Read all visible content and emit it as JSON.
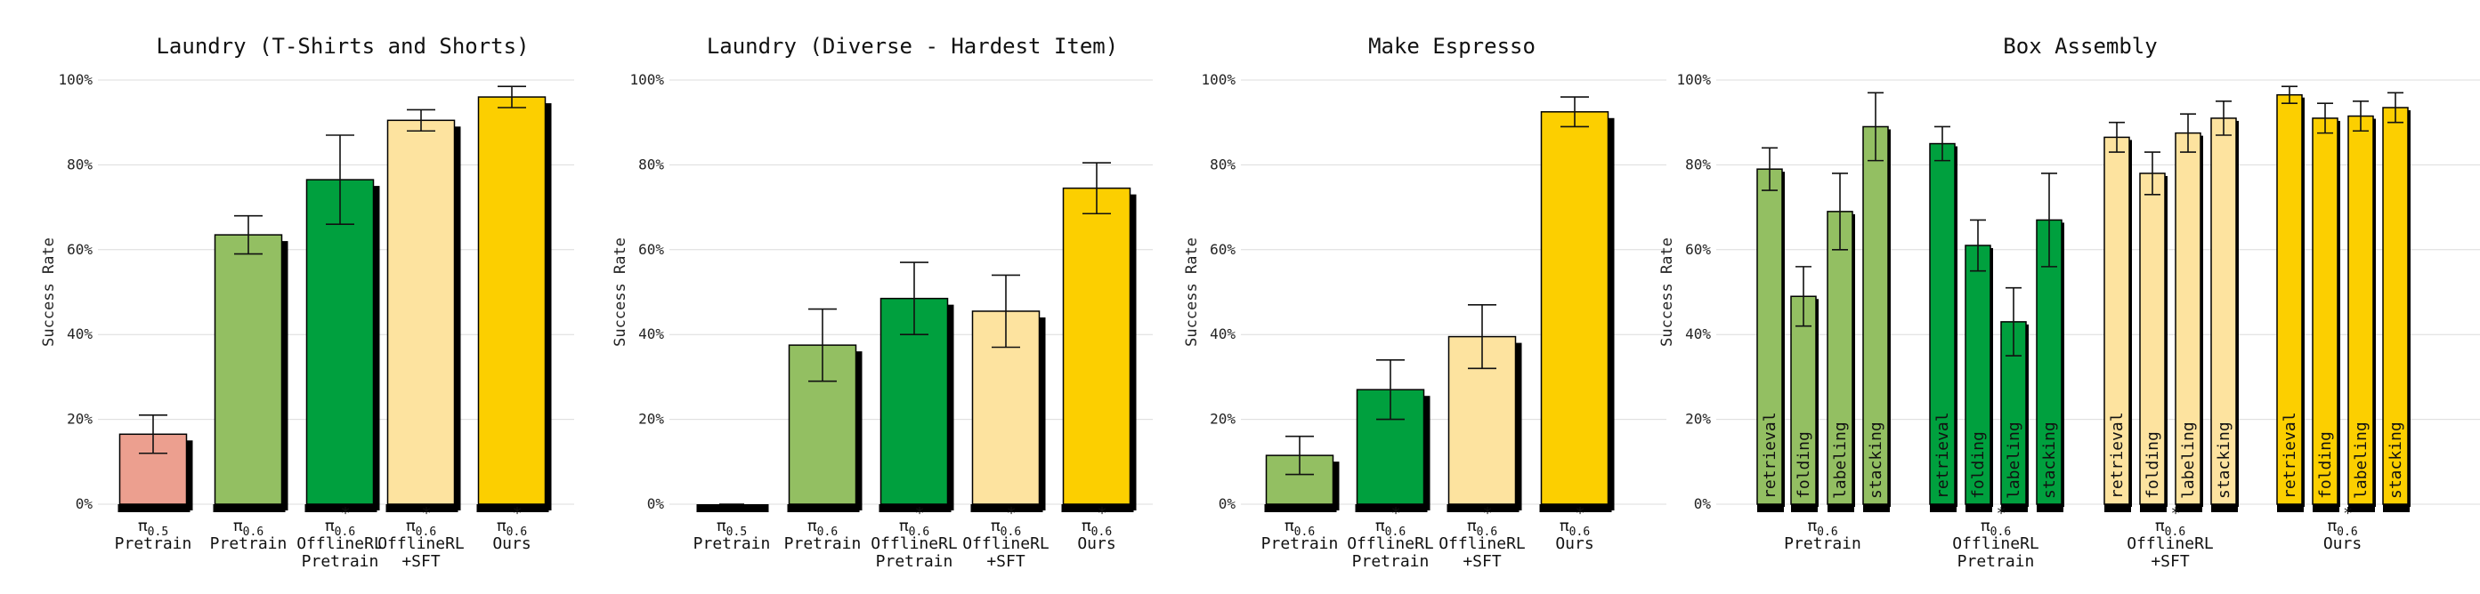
{
  "colors": {
    "pi05_pretrain": "#ec9f8f",
    "pi06_pretrain": "#93bf62",
    "offline_pretrain": "#00a03e",
    "offline_sft": "#fde39f",
    "ours": "#fccf00"
  },
  "chart_data": [
    {
      "type": "bar",
      "title": "Laundry (T-Shirts and Shorts)",
      "ylabel": "Success Rate",
      "ylim": [
        0,
        100
      ],
      "yticks": [
        "0%",
        "20%",
        "40%",
        "60%",
        "80%",
        "100%"
      ],
      "grid": true,
      "categories": [
        {
          "sym": "π",
          "sub": "0.5",
          "star": false,
          "line1": "Pretrain",
          "line2": ""
        },
        {
          "sym": "π",
          "sub": "0.6",
          "star": false,
          "line1": "Pretrain",
          "line2": ""
        },
        {
          "sym": "π",
          "sub": "0.6",
          "star": true,
          "line1": "OfflineRL",
          "line2": "Pretrain"
        },
        {
          "sym": "π",
          "sub": "0.6",
          "star": true,
          "line1": "OfflineRL",
          "line2": "+SFT"
        },
        {
          "sym": "π",
          "sub": "0.6",
          "star": true,
          "line1": "Ours",
          "line2": ""
        }
      ],
      "values": [
        16.5,
        63.5,
        76.5,
        90.5,
        96
      ],
      "errors": [
        4.5,
        4.5,
        10.5,
        2.5,
        2.5
      ],
      "colors": [
        "pi05_pretrain",
        "pi06_pretrain",
        "offline_pretrain",
        "offline_sft",
        "ours"
      ]
    },
    {
      "type": "bar",
      "title": "Laundry (Diverse - Hardest Item)",
      "ylabel": "Success Rate",
      "ylim": [
        0,
        100
      ],
      "yticks": [
        "0%",
        "20%",
        "40%",
        "60%",
        "80%",
        "100%"
      ],
      "grid": true,
      "categories": [
        {
          "sym": "π",
          "sub": "0.5",
          "star": false,
          "line1": "Pretrain",
          "line2": ""
        },
        {
          "sym": "π",
          "sub": "0.6",
          "star": false,
          "line1": "Pretrain",
          "line2": ""
        },
        {
          "sym": "π",
          "sub": "0.6",
          "star": true,
          "line1": "OfflineRL",
          "line2": "Pretrain"
        },
        {
          "sym": "π",
          "sub": "0.6",
          "star": true,
          "line1": "OfflineRL",
          "line2": "+SFT"
        },
        {
          "sym": "π",
          "sub": "0.6",
          "star": true,
          "line1": "Ours",
          "line2": ""
        }
      ],
      "values": [
        0,
        37.5,
        48.5,
        45.5,
        74.5
      ],
      "errors": [
        0,
        8.5,
        8.5,
        8.5,
        6
      ],
      "colors": [
        "pi05_pretrain",
        "pi06_pretrain",
        "offline_pretrain",
        "offline_sft",
        "ours"
      ]
    },
    {
      "type": "bar",
      "title": "Make Espresso",
      "ylabel": "Success Rate",
      "ylim": [
        0,
        100
      ],
      "yticks": [
        "0%",
        "20%",
        "40%",
        "60%",
        "80%",
        "100%"
      ],
      "grid": true,
      "categories": [
        {
          "sym": "π",
          "sub": "0.6",
          "star": false,
          "line1": "Pretrain",
          "line2": ""
        },
        {
          "sym": "π",
          "sub": "0.6",
          "star": true,
          "line1": "OfflineRL",
          "line2": "Pretrain"
        },
        {
          "sym": "π",
          "sub": "0.6",
          "star": true,
          "line1": "OfflineRL",
          "line2": "+SFT"
        },
        {
          "sym": "π",
          "sub": "0.6",
          "star": true,
          "line1": "Ours",
          "line2": ""
        }
      ],
      "values": [
        11.5,
        27,
        39.5,
        92.5
      ],
      "errors": [
        4.5,
        7,
        7.5,
        3.5
      ],
      "colors": [
        "pi06_pretrain",
        "offline_pretrain",
        "offline_sft",
        "ours"
      ]
    },
    {
      "type": "bar",
      "title": "Box Assembly",
      "ylabel": "Success Rate",
      "ylim": [
        0,
        100
      ],
      "yticks": [
        "0%",
        "20%",
        "40%",
        "60%",
        "80%",
        "100%"
      ],
      "grid": true,
      "subcategories": [
        "retrieval",
        "folding",
        "labeling",
        "stacking"
      ],
      "groups": [
        {
          "sym": "π",
          "sub": "0.6",
          "star": false,
          "line1": "Pretrain",
          "line2": "",
          "color": "pi06_pretrain",
          "values": [
            79,
            49,
            69,
            89
          ],
          "errors": [
            5,
            7,
            9,
            8
          ]
        },
        {
          "sym": "π",
          "sub": "0.6",
          "star": true,
          "line1": "OfflineRL",
          "line2": "Pretrain",
          "color": "offline_pretrain",
          "values": [
            85,
            61,
            43,
            67
          ],
          "errors": [
            4,
            6,
            8,
            11
          ]
        },
        {
          "sym": "π",
          "sub": "0.6",
          "star": true,
          "line1": "OfflineRL",
          "line2": "+SFT",
          "color": "offline_sft",
          "values": [
            86.5,
            78,
            87.5,
            91
          ],
          "errors": [
            3.5,
            5,
            4.5,
            4
          ]
        },
        {
          "sym": "π",
          "sub": "0.6",
          "star": true,
          "line1": "Ours",
          "line2": "",
          "color": "ours",
          "values": [
            96.5,
            91,
            91.5,
            93.5
          ],
          "errors": [
            2,
            3.5,
            3.5,
            3.5
          ]
        }
      ]
    }
  ]
}
